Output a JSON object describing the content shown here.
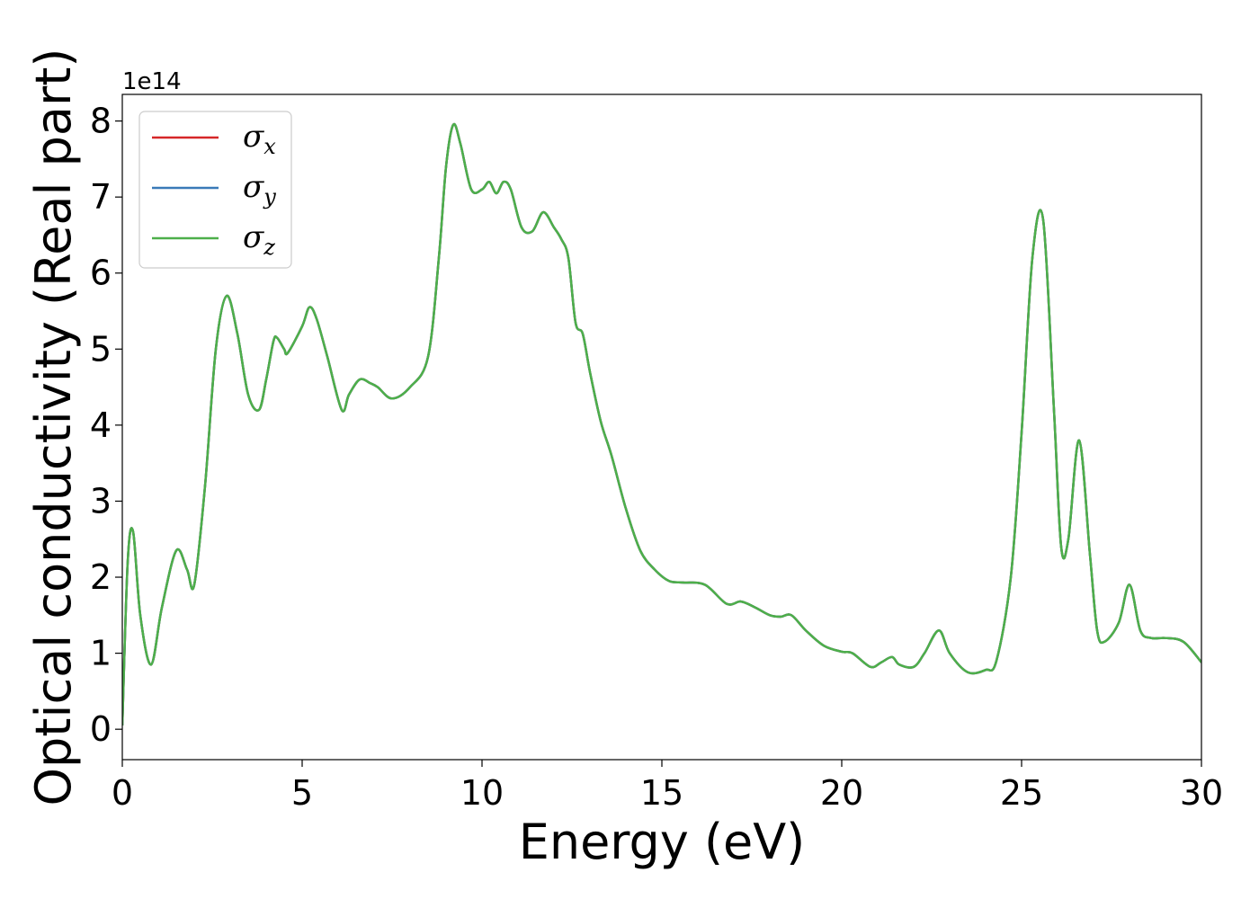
{
  "chart_data": {
    "type": "line",
    "xlabel": "Energy (eV)",
    "ylabel": "Optical conductivity (Real part)",
    "y_offset_label": "1e14",
    "xlim": [
      0,
      30
    ],
    "ylim": [
      -0.4,
      8.35
    ],
    "xticks": [
      0,
      5,
      10,
      15,
      20,
      25,
      30
    ],
    "yticks": [
      0,
      1,
      2,
      3,
      4,
      5,
      6,
      7,
      8
    ],
    "grid": false,
    "legend_position": "top-left",
    "series": [
      {
        "name": "σx",
        "symbol": "σ",
        "subscript": "x",
        "color": "#d62728"
      },
      {
        "name": "σy",
        "symbol": "σ",
        "subscript": "y",
        "color": "#3a7ab8"
      },
      {
        "name": "σz",
        "symbol": "σ",
        "subscript": "z",
        "color": "#4daf4a"
      }
    ],
    "x": [
      0.0,
      0.15,
      0.3,
      0.5,
      0.8,
      1.1,
      1.5,
      1.8,
      2.0,
      2.3,
      2.6,
      2.9,
      3.2,
      3.5,
      3.8,
      4.0,
      4.2,
      4.3,
      4.5,
      4.6,
      5.0,
      5.2,
      5.4,
      5.7,
      6.1,
      6.3,
      6.6,
      6.9,
      7.1,
      7.5,
      8.0,
      8.5,
      8.8,
      9.0,
      9.2,
      9.4,
      9.7,
      10.0,
      10.2,
      10.4,
      10.6,
      10.8,
      11.1,
      11.4,
      11.7,
      12.0,
      12.2,
      12.4,
      12.6,
      12.8,
      13.0,
      13.3,
      13.6,
      14.0,
      14.4,
      14.8,
      15.2,
      15.6,
      16.2,
      16.8,
      17.2,
      17.6,
      18.0,
      18.3,
      18.6,
      19.0,
      19.5,
      20.0,
      20.3,
      20.8,
      21.1,
      21.4,
      21.6,
      22.0,
      22.3,
      22.7,
      23.0,
      23.5,
      24.0,
      24.3,
      24.7,
      25.0,
      25.3,
      25.6,
      25.9,
      26.1,
      26.3,
      26.6,
      26.9,
      27.1,
      27.3,
      27.7,
      28.0,
      28.3,
      28.6,
      29.0,
      29.5,
      30.0
    ],
    "y": [
      0.05,
      2.2,
      2.6,
      1.5,
      0.85,
      1.6,
      2.35,
      2.1,
      1.9,
      3.2,
      5.0,
      5.7,
      5.2,
      4.4,
      4.2,
      4.6,
      5.1,
      5.15,
      5.0,
      4.95,
      5.3,
      5.55,
      5.4,
      4.9,
      4.2,
      4.4,
      4.6,
      4.55,
      4.5,
      4.35,
      4.5,
      4.9,
      6.2,
      7.4,
      7.95,
      7.7,
      7.1,
      7.1,
      7.2,
      7.05,
      7.2,
      7.1,
      6.6,
      6.55,
      6.8,
      6.6,
      6.45,
      6.2,
      5.35,
      5.2,
      4.7,
      4.05,
      3.6,
      2.9,
      2.35,
      2.1,
      1.95,
      1.93,
      1.9,
      1.65,
      1.68,
      1.6,
      1.5,
      1.48,
      1.5,
      1.3,
      1.1,
      1.02,
      1.0,
      0.82,
      0.88,
      0.95,
      0.85,
      0.82,
      1.0,
      1.3,
      1.0,
      0.75,
      0.78,
      0.9,
      2.0,
      3.9,
      6.2,
      6.7,
      4.2,
      2.4,
      2.5,
      3.8,
      2.3,
      1.3,
      1.15,
      1.4,
      1.9,
      1.3,
      1.2,
      1.2,
      1.15,
      0.88
    ]
  }
}
